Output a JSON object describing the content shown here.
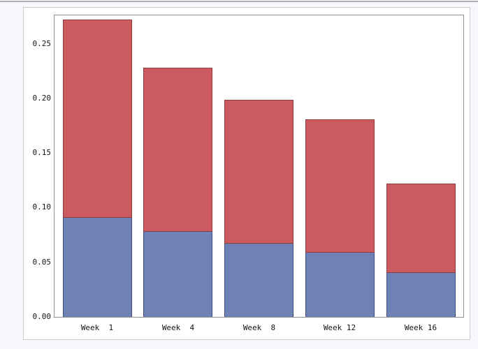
{
  "page": {
    "background_color": "#F6F8FC",
    "top_border_color": "#A9ADB3",
    "panel_background": "#FFFFFF",
    "panel_border_color": "#CACCD0",
    "plot_border_color": "#8F9296"
  },
  "chart_data": {
    "type": "bar",
    "stacked": true,
    "title": "",
    "xlabel": "",
    "ylabel": "",
    "categories": [
      "Week  1",
      "Week  4",
      "Week  8",
      "Week 12",
      "Week 16"
    ],
    "series": [
      {
        "name": "bottom-blue",
        "color": "#6F82B5",
        "border_color": "#3E4C80",
        "values": [
          0.091,
          0.078,
          0.067,
          0.059,
          0.04
        ]
      },
      {
        "name": "top-red",
        "color": "#CC5B5F",
        "border_color": "#8F3A3E",
        "values": [
          0.181,
          0.15,
          0.132,
          0.122,
          0.082
        ]
      }
    ],
    "totals": [
      0.272,
      0.228,
      0.199,
      0.181,
      0.122
    ],
    "ylim": [
      0,
      0.276
    ],
    "yticks": [
      {
        "value": 0.0,
        "label": "0.00"
      },
      {
        "value": 0.05,
        "label": "0.05"
      },
      {
        "value": 0.1,
        "label": "0.10"
      },
      {
        "value": 0.15,
        "label": "0.15"
      },
      {
        "value": 0.2,
        "label": "0.20"
      },
      {
        "value": 0.25,
        "label": "0.25"
      }
    ],
    "grid": false,
    "legend": "none"
  }
}
